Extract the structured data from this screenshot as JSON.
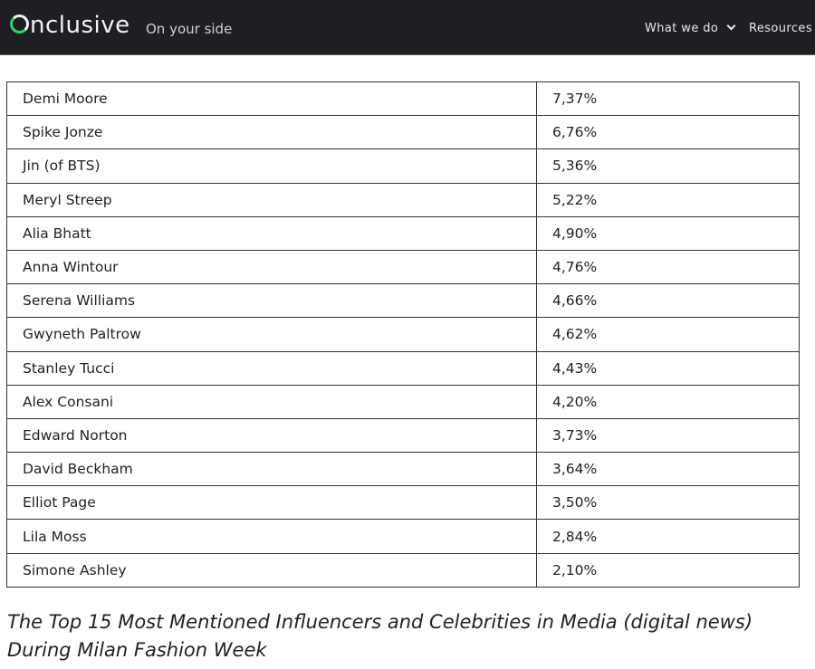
{
  "header": {
    "logo": "nclusive",
    "tagline": "On your side",
    "nav": [
      {
        "label": "What we do"
      },
      {
        "label": "Resources"
      }
    ]
  },
  "table": {
    "rows": [
      {
        "name": "Demi Moore",
        "value": "7,37%"
      },
      {
        "name": "Spike Jonze",
        "value": "6,76%"
      },
      {
        "name": "Jin (of BTS)",
        "value": "5,36%"
      },
      {
        "name": "Meryl Streep",
        "value": "5,22%"
      },
      {
        "name": "Alia Bhatt",
        "value": "4,90%"
      },
      {
        "name": "Anna Wintour",
        "value": "4,76%"
      },
      {
        "name": "Serena Williams",
        "value": "4,66%"
      },
      {
        "name": "Gwyneth Paltrow",
        "value": "4,62%"
      },
      {
        "name": "Stanley Tucci",
        "value": "4,43%"
      },
      {
        "name": "Alex Consani",
        "value": "4,20%"
      },
      {
        "name": "Edward Norton",
        "value": "3,73%"
      },
      {
        "name": "David Beckham",
        "value": "3,64%"
      },
      {
        "name": "Elliot Page",
        "value": "3,50%"
      },
      {
        "name": "Lila Moss",
        "value": "2,84%"
      },
      {
        "name": "Simone Ashley",
        "value": "2,10%"
      }
    ]
  },
  "caption": "The Top 15 Most Mentioned Influencers and Celebrities in Media (digital news) During Milan Fashion Week",
  "colors": {
    "header_bg": "#1f1e23",
    "logo_accent": "#2ed36b"
  }
}
